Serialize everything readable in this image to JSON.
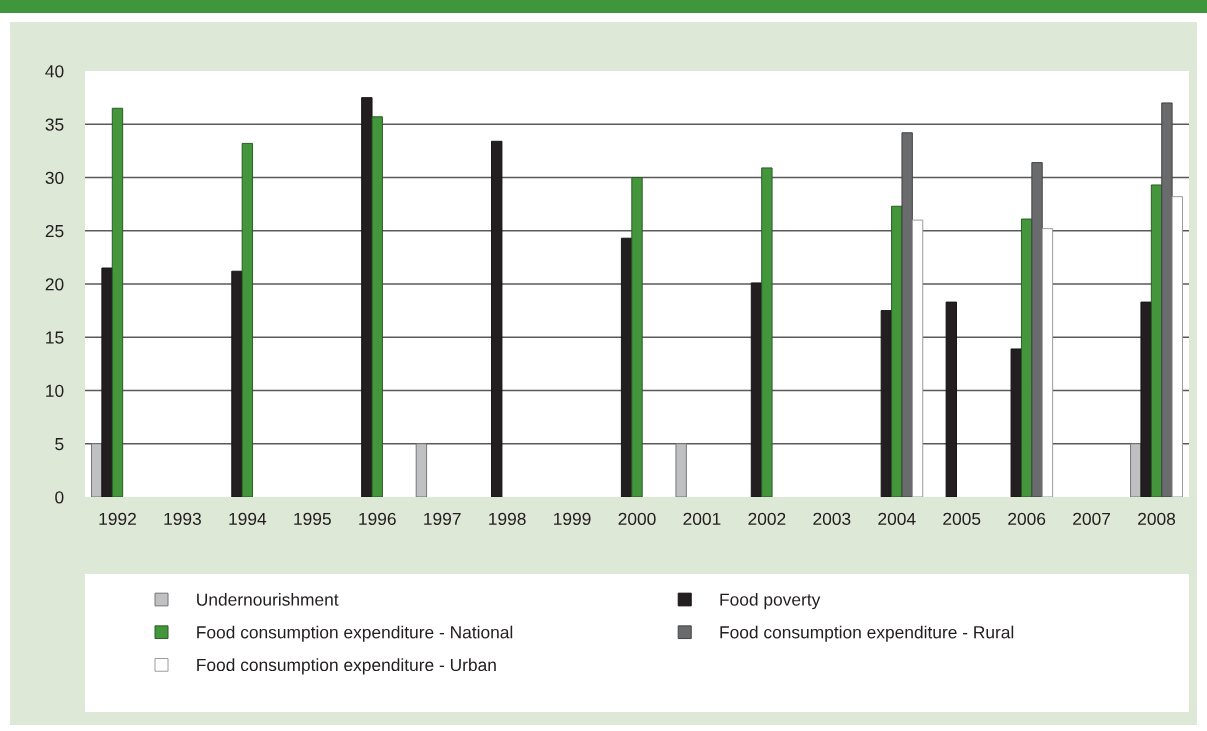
{
  "chart_data": {
    "type": "bar",
    "categories": [
      "1992",
      "1993",
      "1994",
      "1995",
      "1996",
      "1997",
      "1998",
      "1999",
      "2000",
      "2001",
      "2002",
      "2003",
      "2004",
      "2005",
      "2006",
      "2007",
      "2008"
    ],
    "series": [
      {
        "name": "Undernourishment",
        "color": "#bfc0c2",
        "values": [
          5,
          null,
          null,
          null,
          null,
          5,
          null,
          null,
          null,
          5,
          null,
          null,
          null,
          null,
          null,
          null,
          5
        ]
      },
      {
        "name": "Food poverty",
        "color": "#231f20",
        "values": [
          21.5,
          null,
          21.2,
          null,
          37.5,
          null,
          33.4,
          null,
          24.3,
          null,
          20.1,
          null,
          17.5,
          18.3,
          13.9,
          null,
          18.3
        ]
      },
      {
        "name": "Food consumption expenditure - National",
        "color": "#43963b",
        "values": [
          36.5,
          null,
          33.2,
          null,
          35.7,
          null,
          null,
          null,
          30.0,
          null,
          30.9,
          null,
          27.3,
          null,
          26.1,
          null,
          29.3
        ]
      },
      {
        "name": "Food consumption expenditure - Rural",
        "color": "#6a6b6d",
        "values": [
          null,
          null,
          null,
          null,
          null,
          null,
          null,
          null,
          null,
          null,
          null,
          null,
          34.2,
          null,
          31.4,
          null,
          37.0
        ]
      },
      {
        "name": "Food consumption expenditure - Urban",
        "color": "#ffffff",
        "values": [
          null,
          null,
          null,
          null,
          null,
          null,
          null,
          null,
          null,
          null,
          null,
          null,
          26.0,
          null,
          25.2,
          null,
          28.2
        ]
      }
    ],
    "ylim": [
      0,
      40
    ],
    "yticks": [
      0,
      5,
      10,
      15,
      20,
      25,
      30,
      35,
      40
    ],
    "grid": "y",
    "legend": "bottom"
  }
}
